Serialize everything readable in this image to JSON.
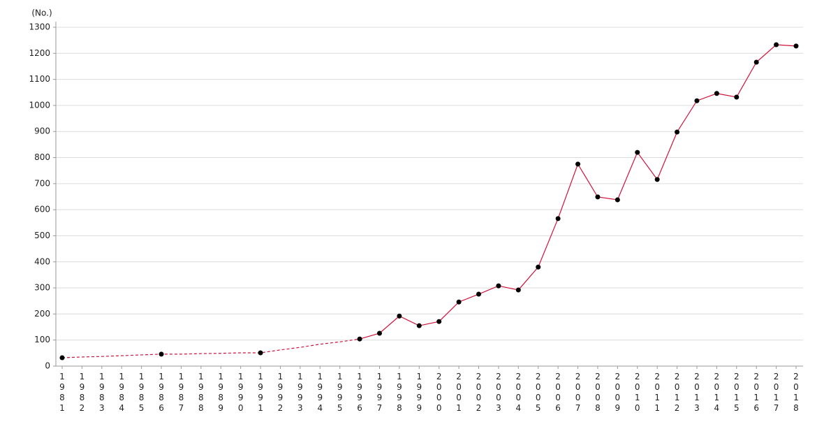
{
  "chart_data": {
    "type": "line",
    "ylabel": "(No.)",
    "categories": [
      "1981",
      "1982",
      "1983",
      "1984",
      "1985",
      "1986",
      "1987",
      "1988",
      "1989",
      "1990",
      "1991",
      "1992",
      "1993",
      "1994",
      "1995",
      "1996",
      "1997",
      "1998",
      "1999",
      "2000",
      "2001",
      "2002",
      "2003",
      "2004",
      "2005",
      "2006",
      "2007",
      "2008",
      "2009",
      "2010",
      "2011",
      "2012",
      "2013",
      "2014",
      "2015",
      "2016",
      "2017",
      "2018"
    ],
    "series": [
      {
        "color": "#d0103a",
        "dash": true,
        "markers": false,
        "values": [
          32,
          35,
          37,
          40,
          43,
          46,
          46,
          48,
          49,
          51,
          51,
          62,
          72,
          84,
          93,
          104,
          null,
          null,
          null,
          null,
          null,
          null,
          null,
          null,
          null,
          null,
          null,
          null,
          null,
          null,
          null,
          null,
          null,
          null,
          null,
          null,
          null,
          null
        ]
      },
      {
        "color": "#d0103a",
        "dash": false,
        "markers": true,
        "marker_color": "#000000",
        "values": [
          32,
          null,
          null,
          null,
          null,
          46,
          null,
          null,
          null,
          null,
          51,
          null,
          null,
          null,
          null,
          104,
          126,
          192,
          155,
          171,
          246,
          276,
          308,
          292,
          380,
          566,
          775,
          649,
          638,
          820,
          716,
          898,
          1018,
          1046,
          1032,
          1166,
          1233,
          1228
        ]
      }
    ],
    "ylim": [
      0,
      1300
    ],
    "yticks": [
      0,
      100,
      200,
      300,
      400,
      500,
      600,
      700,
      800,
      900,
      1000,
      1100,
      1200,
      1300
    ],
    "grid": true
  }
}
